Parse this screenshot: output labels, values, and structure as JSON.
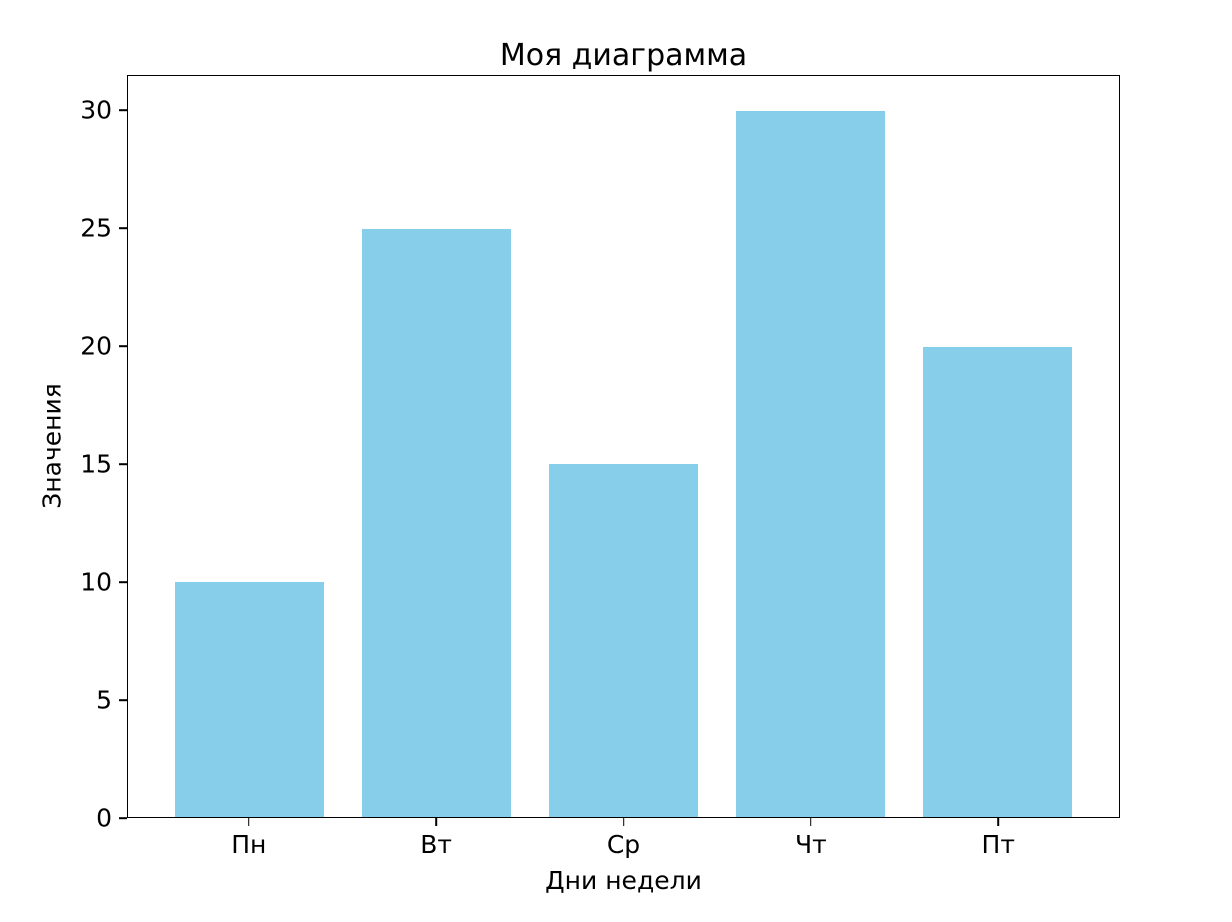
{
  "chart_data": {
    "type": "bar",
    "title": "Моя диаграмма",
    "xlabel": "Дни недели",
    "ylabel": "Значения",
    "categories": [
      "Пн",
      "Вт",
      "Ср",
      "Чт",
      "Пт"
    ],
    "values": [
      10,
      25,
      15,
      30,
      20
    ],
    "bar_color": "#87CEEB",
    "ylim": [
      0,
      31.5
    ],
    "yticks": [
      0,
      5,
      10,
      15,
      20,
      25,
      30
    ],
    "grid": false,
    "legend": "none"
  }
}
